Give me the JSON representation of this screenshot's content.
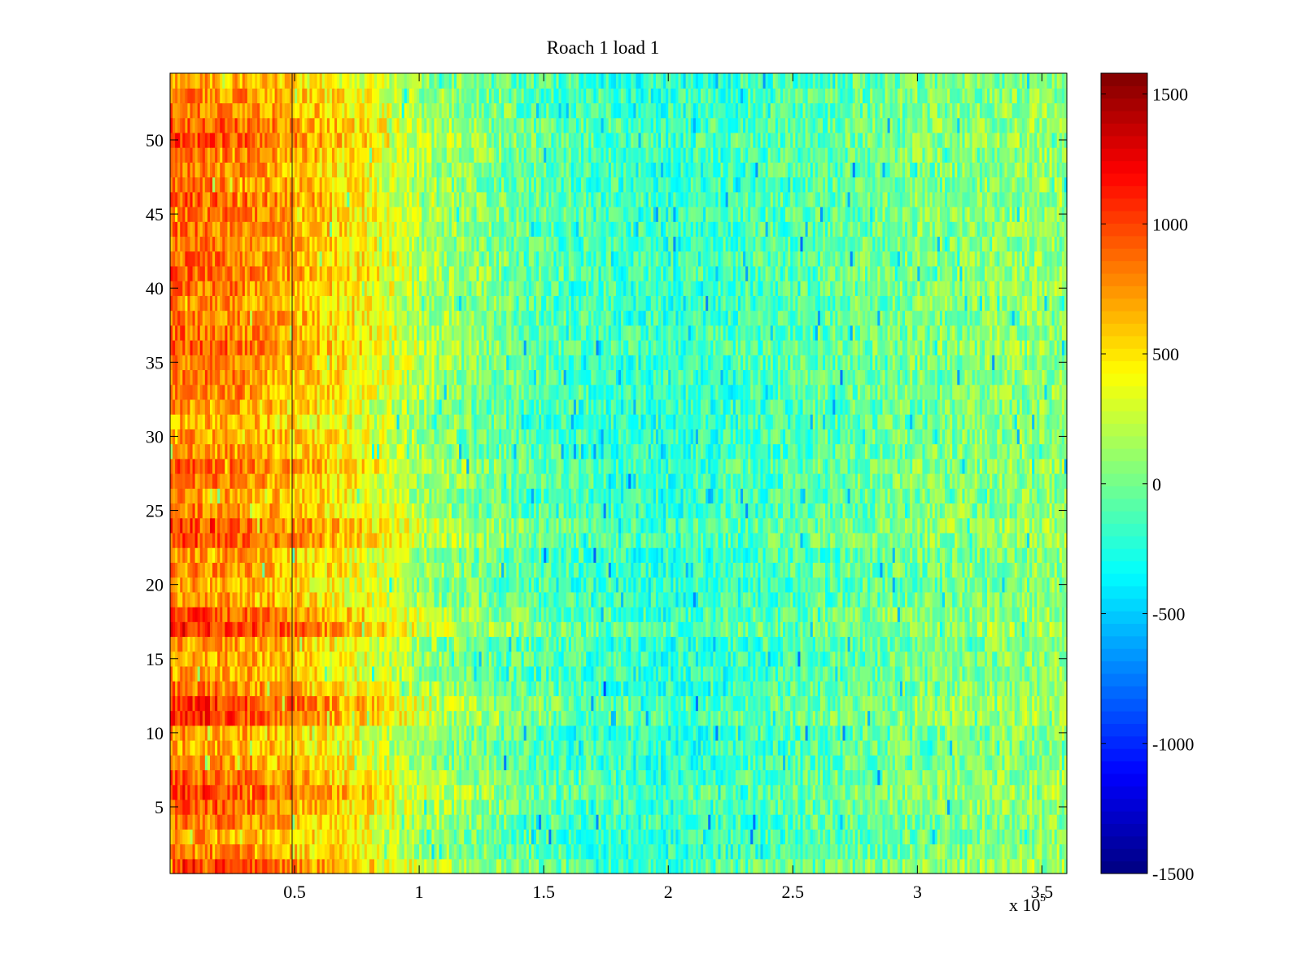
{
  "chart_data": {
    "type": "heatmap",
    "title": "Roach 1 load 1",
    "xlabel": "",
    "ylabel": "",
    "x_exponent_label": "x 10",
    "x_exponent_power": "5",
    "xlim": [
      0,
      3.6
    ],
    "ylim": [
      0.5,
      54.5
    ],
    "x_ticks": [
      {
        "value": 0.5,
        "label": "0.5"
      },
      {
        "value": 1,
        "label": "1"
      },
      {
        "value": 1.5,
        "label": "1.5"
      },
      {
        "value": 2,
        "label": "2"
      },
      {
        "value": 2.5,
        "label": "2.5"
      },
      {
        "value": 3,
        "label": "3"
      },
      {
        "value": 3.5,
        "label": "3.5"
      }
    ],
    "y_ticks": [
      {
        "value": 5,
        "label": "5"
      },
      {
        "value": 10,
        "label": "10"
      },
      {
        "value": 15,
        "label": "15"
      },
      {
        "value": 20,
        "label": "20"
      },
      {
        "value": 25,
        "label": "25"
      },
      {
        "value": 30,
        "label": "30"
      },
      {
        "value": 35,
        "label": "35"
      },
      {
        "value": 40,
        "label": "40"
      },
      {
        "value": 45,
        "label": "45"
      },
      {
        "value": 50,
        "label": "50"
      }
    ],
    "colorbar": {
      "colormap": "jet",
      "range": [
        -1500,
        1580
      ],
      "ticks": [
        {
          "value": 1500,
          "label": "1500"
        },
        {
          "value": 1000,
          "label": "1000"
        },
        {
          "value": 500,
          "label": "500"
        },
        {
          "value": 0,
          "label": "0"
        },
        {
          "value": -500,
          "label": "-500"
        },
        {
          "value": -1000,
          "label": "-1000"
        },
        {
          "value": -1500,
          "label": "-1500"
        }
      ]
    },
    "rows": 54,
    "x_profile": [
      {
        "x": 0.0,
        "v": 650
      },
      {
        "x": 0.3,
        "v": 600
      },
      {
        "x": 0.5,
        "v": 480
      },
      {
        "x": 0.8,
        "v": 280
      },
      {
        "x": 1.0,
        "v": 60
      },
      {
        "x": 1.5,
        "v": -150
      },
      {
        "x": 2.0,
        "v": -250
      },
      {
        "x": 2.5,
        "v": -150
      },
      {
        "x": 3.0,
        "v": -30
      },
      {
        "x": 3.6,
        "v": 50
      }
    ],
    "row_offsets": [
      420,
      150,
      80,
      210,
      300,
      420,
      260,
      120,
      60,
      110,
      430,
      470,
      190,
      70,
      80,
      120,
      500,
      360,
      120,
      60,
      150,
      100,
      380,
      400,
      180,
      110,
      200,
      280,
      130,
      100,
      60,
      80,
      180,
      200,
      220,
      300,
      240,
      210,
      180,
      230,
      300,
      250,
      200,
      230,
      240,
      290,
      190,
      180,
      240,
      350,
      290,
      210,
      160,
      80
    ],
    "noise_amplitude": 260,
    "vertical_line_x": 0.49
  },
  "colors": {
    "axis": "#000000",
    "background": "#ffffff"
  }
}
